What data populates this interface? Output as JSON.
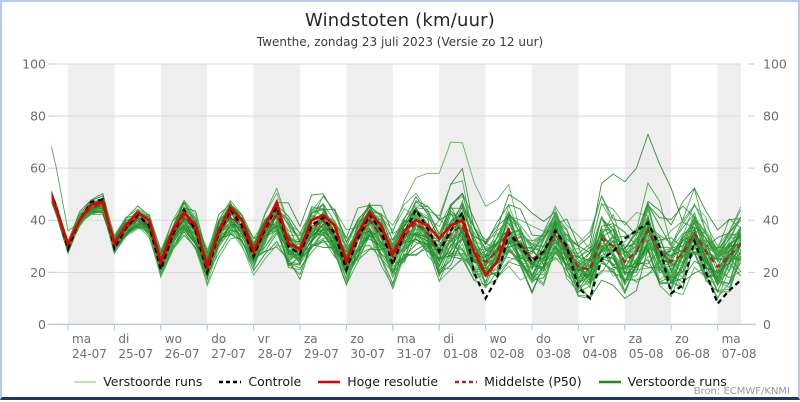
{
  "header": {
    "title": "Windstoten (km/uur)",
    "subtitle": "Twenthe, zondag 23 juli 2023 (Versie zo 12 uur)"
  },
  "source": "Bron: ECMWF/KNMI",
  "legend": [
    {
      "label": "Verstoorde runs",
      "color": "#a9d8a9",
      "dash": "",
      "width": 1.5
    },
    {
      "label": "Controle",
      "color": "#000000",
      "dash": "4 3",
      "width": 2.5
    },
    {
      "label": "Hoge resolutie",
      "color": "#e00000",
      "dash": "",
      "width": 2.5
    },
    {
      "label": "Middelste (P50)",
      "color": "#b22222",
      "dash": "4 3",
      "width": 2.5
    },
    {
      "label": "Verstoorde runs",
      "color": "#1b8a1f",
      "dash": "",
      "width": 2.5
    }
  ],
  "colors": {
    "band": "#eeeeee",
    "grid": "#d9d9d9",
    "axis": "#b8c6da",
    "mini_tick": "#c9c9c9",
    "tick_label": "#6e6e6e",
    "border": "#b5cae8",
    "border_bottom": "#1c3668",
    "greens": [
      "#2f9d38",
      "#1f8226",
      "#46aa4e"
    ]
  },
  "chart_data": {
    "type": "line",
    "title": "Windstoten (km/uur)",
    "subtitle": "Twenthe, zondag 23 juli 2023 (Versie zo 12 uur)",
    "ylabel": "km/uur",
    "ylim": [
      0,
      100
    ],
    "yticks": [
      0,
      20,
      40,
      60,
      80,
      100
    ],
    "grid": true,
    "legend_position": "bottom",
    "x_start": "zo 23-07 12:00",
    "x_hours_step": 6,
    "x_hours_total": 360,
    "days": [
      {
        "dow": "ma",
        "date": "24-07"
      },
      {
        "dow": "di",
        "date": "25-07"
      },
      {
        "dow": "wo",
        "date": "26-07"
      },
      {
        "dow": "do",
        "date": "27-07"
      },
      {
        "dow": "vr",
        "date": "28-07"
      },
      {
        "dow": "za",
        "date": "29-07"
      },
      {
        "dow": "zo",
        "date": "30-07"
      },
      {
        "dow": "ma",
        "date": "31-07"
      },
      {
        "dow": "di",
        "date": "01-08"
      },
      {
        "dow": "wo",
        "date": "02-08"
      },
      {
        "dow": "do",
        "date": "03-08"
      },
      {
        "dow": "vr",
        "date": "04-08"
      },
      {
        "dow": "za",
        "date": "05-08"
      },
      {
        "dow": "zo",
        "date": "06-08"
      },
      {
        "dow": "ma",
        "date": "07-08"
      }
    ],
    "series": [
      {
        "name": "Controle",
        "role": "control",
        "color": "#000000",
        "style": "dashed",
        "values": [
          57,
          45,
          29,
          40,
          47,
          48,
          29,
          37,
          42,
          38,
          21,
          34,
          44,
          36,
          20,
          35,
          44,
          38,
          26,
          37,
          45,
          30,
          27,
          38,
          41,
          35,
          21,
          33,
          42,
          36,
          23,
          35,
          44,
          37,
          28,
          36,
          43,
          20,
          10,
          18,
          35,
          30,
          24,
          28,
          36,
          30,
          14,
          10,
          25,
          28,
          33,
          36,
          39,
          30,
          12,
          15,
          32,
          20,
          8,
          13,
          17
        ]
      },
      {
        "name": "Hoge resolutie",
        "role": "hires",
        "color": "#e00000",
        "style": "solid",
        "values": [
          57,
          44,
          31,
          40,
          46,
          47,
          31,
          38,
          43,
          40,
          24,
          36,
          43,
          38,
          22,
          36,
          45,
          40,
          28,
          38,
          47,
          31,
          29,
          40,
          42,
          38,
          24,
          35,
          43,
          38,
          27,
          36,
          40,
          38,
          33,
          38,
          40,
          28,
          19,
          24,
          37
        ]
      },
      {
        "name": "Middelste (P50)",
        "role": "p50",
        "color": "#b22222",
        "style": "dashed",
        "values": [
          56,
          44,
          30,
          40,
          45,
          46,
          31,
          37,
          41,
          38,
          23,
          34,
          42,
          36,
          23,
          35,
          42,
          37,
          27,
          36,
          42,
          33,
          28,
          37,
          40,
          34,
          25,
          33,
          40,
          34,
          26,
          34,
          39,
          35,
          28,
          35,
          38,
          28,
          24,
          28,
          36,
          31,
          25,
          28,
          35,
          29,
          22,
          21,
          33,
          30,
          24,
          28,
          36,
          28,
          24,
          27,
          35,
          28,
          22,
          26,
          31
        ]
      }
    ],
    "ensemble": {
      "name": "Verstoorde runs",
      "count": 50,
      "seed": 20230723,
      "envelope_min": [
        46,
        36,
        24,
        30,
        34,
        33,
        22,
        27,
        31,
        27,
        14,
        23,
        29,
        25,
        12,
        23,
        29,
        25,
        14,
        23,
        29,
        20,
        15,
        23,
        27,
        21,
        12,
        19,
        25,
        21,
        13,
        21,
        25,
        21,
        14,
        21,
        25,
        17,
        10,
        13,
        21,
        17,
        12,
        15,
        21,
        17,
        10,
        10,
        17,
        15,
        10,
        13,
        19,
        15,
        10,
        11,
        17,
        13,
        8,
        10,
        13
      ],
      "envelope_max": [
        81,
        60,
        45,
        52,
        55,
        56,
        45,
        50,
        52,
        50,
        38,
        46,
        56,
        50,
        36,
        48,
        55,
        50,
        40,
        52,
        60,
        60,
        45,
        56,
        58,
        52,
        45,
        52,
        60,
        55,
        48,
        56,
        62,
        58,
        58,
        70,
        73,
        60,
        50,
        55,
        62,
        56,
        50,
        55,
        62,
        56,
        50,
        52,
        65,
        60,
        55,
        60,
        73,
        62,
        55,
        58,
        62,
        56,
        50,
        55,
        57
      ],
      "outliers": [
        {
          "member": 0,
          "center": 0,
          "amount": 25,
          "sigma": 1.2
        },
        {
          "member": 1,
          "center": 52,
          "amount": 36,
          "sigma": 2.4
        },
        {
          "member": 2,
          "center": 35,
          "amount": 36,
          "sigma": 2.6
        }
      ]
    }
  }
}
